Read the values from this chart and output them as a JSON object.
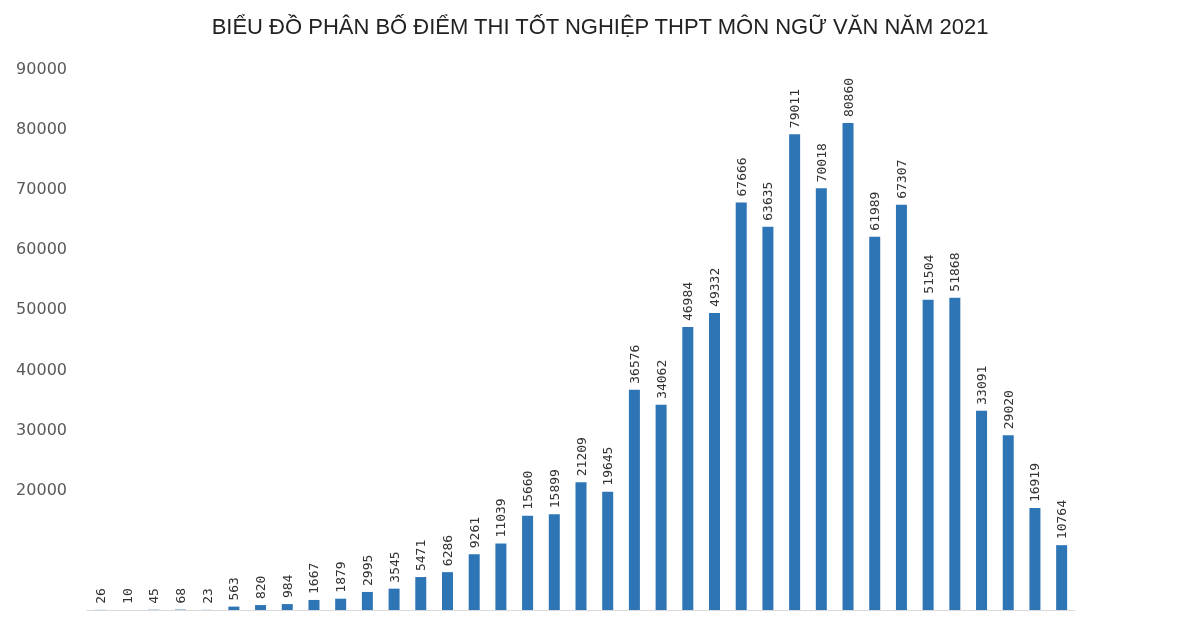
{
  "chart_data": {
    "type": "bar",
    "title": "BIỂU ĐỒ PHÂN BỐ ĐIỂM THI TỐT NGHIỆP THPT MÔN NGỮ VĂN NĂM 2021",
    "categories": [
      null,
      null,
      null,
      null,
      null,
      null,
      null,
      null,
      null,
      null,
      null,
      null,
      null,
      null,
      null,
      null,
      null,
      null,
      null,
      null,
      null,
      null,
      null,
      null,
      null,
      null,
      null,
      null,
      null,
      null,
      null,
      null,
      null,
      null,
      null,
      null,
      null
    ],
    "values": [
      26,
      10,
      45,
      68,
      23,
      563,
      820,
      984,
      1667,
      1879,
      2995,
      3545,
      5471,
      6286,
      9261,
      11039,
      15660,
      15899,
      21209,
      19645,
      36576,
      34062,
      46984,
      49332,
      67666,
      63635,
      79011,
      70018,
      80860,
      61989,
      67307,
      51504,
      51868,
      33091,
      29020,
      16919,
      10764
    ],
    "color": "#2e75b6",
    "ylim": [
      0,
      90000
    ],
    "yticks": [
      20000,
      30000,
      40000,
      50000,
      60000,
      70000,
      80000,
      90000
    ],
    "data_labels": true,
    "grid": false
  }
}
